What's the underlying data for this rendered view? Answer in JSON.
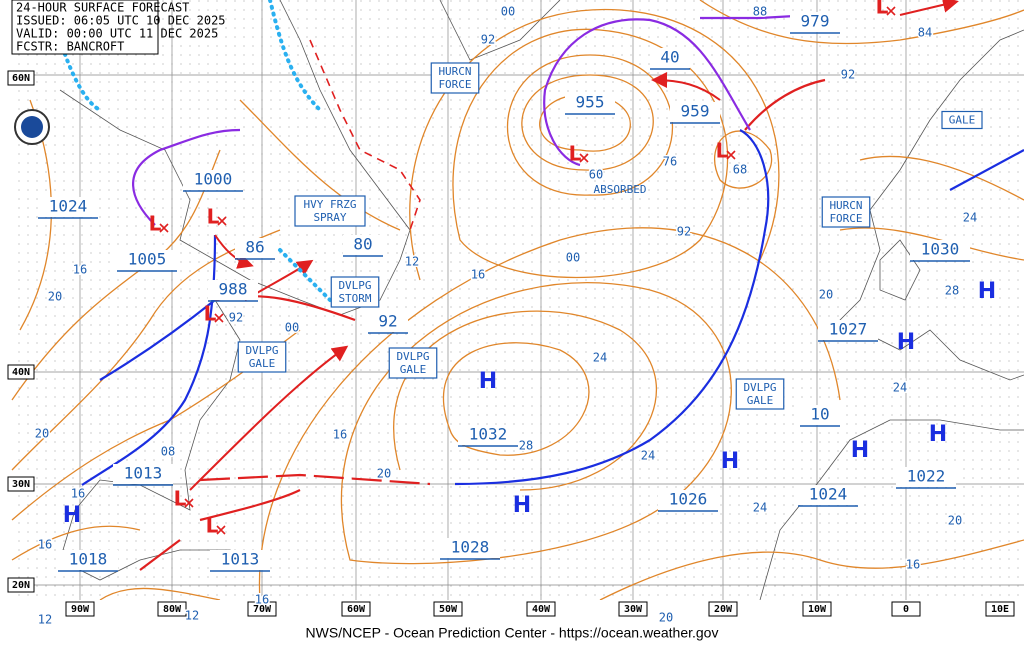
{
  "header": [
    "24-HOUR SURFACE FORECAST",
    "ISSUED: 06:05 UTC 10 DEC 2025",
    "VALID:  00:00 UTC 11 DEC 2025",
    "FCSTR: BANCROFT"
  ],
  "lat_labels": [
    "60N",
    "40N",
    "30N",
    "20N"
  ],
  "lon_labels": [
    "90W",
    "80W",
    "70W",
    "60W",
    "50W",
    "40W",
    "30W",
    "20W",
    "10W",
    "0",
    "10E"
  ],
  "pressures": [
    "1024",
    "1005",
    "1000",
    "988",
    "86",
    "80",
    "92",
    "955",
    "40",
    "959",
    "979",
    "1030",
    "1027",
    "10",
    "1032",
    "1013",
    "1026",
    "1024",
    "1022",
    "1028",
    "1018",
    "1013"
  ],
  "warnings": [
    [
      "HURCN",
      "FORCE"
    ],
    [
      "HVY FRZG",
      "SPRAY"
    ],
    [
      "DVLPG",
      "STORM"
    ],
    [
      "DVLPG",
      "GALE"
    ],
    [
      "DVLPG",
      "GALE"
    ],
    [
      "DVLPG",
      "GALE"
    ],
    [
      "HURCN",
      "FORCE"
    ],
    [
      "GALE"
    ]
  ],
  "notes": [
    "ABSORBED"
  ],
  "isobar_labels": [
    "00",
    "92",
    "88",
    "84",
    "92",
    "76",
    "68",
    "60",
    "92",
    "00",
    "16",
    "12",
    "24",
    "16",
    "20",
    "92",
    "00",
    "16",
    "20",
    "28",
    "24",
    "20",
    "28",
    "24",
    "24",
    "20",
    "16",
    "16",
    "08",
    "24",
    "20",
    "16",
    "20",
    "16",
    "12",
    "12"
  ],
  "highs": [
    "H",
    "H",
    "H",
    "H",
    "H",
    "H",
    "H",
    "H"
  ],
  "lows": [
    "L",
    "L",
    "L",
    "L",
    "L",
    "L",
    "L",
    "L"
  ],
  "footer": "NWS/NCEP - Ocean Prediction Center - https://ocean.weather.gov"
}
